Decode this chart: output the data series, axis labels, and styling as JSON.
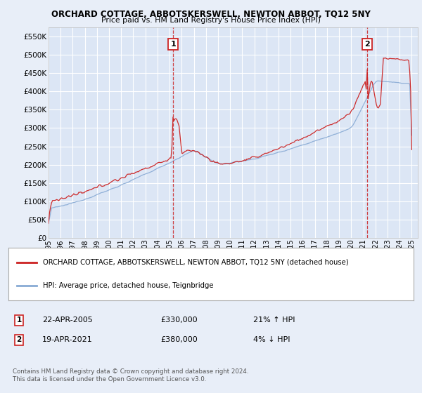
{
  "title": "ORCHARD COTTAGE, ABBOTSKERSWELL, NEWTON ABBOT, TQ12 5NY",
  "subtitle": "Price paid vs. HM Land Registry's House Price Index (HPI)",
  "bg_color": "#e8eef8",
  "plot_bg_color": "#dce6f5",
  "red_color": "#cc2222",
  "blue_color": "#88aad4",
  "grid_color": "#ffffff",
  "ylim": [
    0,
    575000
  ],
  "yticks": [
    0,
    50000,
    100000,
    150000,
    200000,
    250000,
    300000,
    350000,
    400000,
    450000,
    500000,
    550000
  ],
  "sale1_date": "22-APR-2005",
  "sale1_price": 330000,
  "sale2_date": "19-APR-2021",
  "sale2_price": 380000,
  "sale1_hpi_change": "21% ↑ HPI",
  "sale2_hpi_change": "4% ↓ HPI",
  "legend_line1": "ORCHARD COTTAGE, ABBOTSKERSWELL, NEWTON ABBOT, TQ12 5NY (detached house)",
  "legend_line2": "HPI: Average price, detached house, Teignbridge",
  "footnote": "Contains HM Land Registry data © Crown copyright and database right 2024.\nThis data is licensed under the Open Government Licence v3.0.",
  "sale1_x": 2005.3,
  "sale2_x": 2021.3,
  "xmin": 1995,
  "xmax": 2025.5
}
